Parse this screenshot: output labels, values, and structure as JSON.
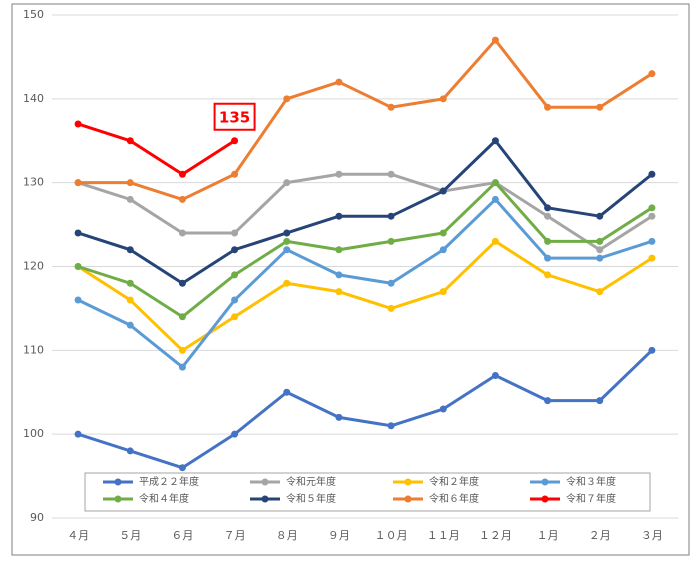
{
  "chart_data": {
    "type": "line",
    "categories": [
      "４月",
      "５月",
      "６月",
      "７月",
      "８月",
      "９月",
      "１０月",
      "１１月",
      "１２月",
      "１月",
      "２月",
      "３月"
    ],
    "series": [
      {
        "name": "平成２２年度",
        "color": "#4472c4",
        "values": [
          100,
          98,
          96,
          100,
          105,
          102,
          101,
          103,
          107,
          104,
          104,
          110
        ]
      },
      {
        "name": "令和元年度",
        "color": "#a5a5a5",
        "values": [
          130,
          128,
          124,
          124,
          130,
          131,
          131,
          129,
          130,
          126,
          122,
          126
        ]
      },
      {
        "name": "令和２年度",
        "color": "#ffc000",
        "values": [
          120,
          116,
          110,
          114,
          118,
          117,
          115,
          117,
          123,
          119,
          117,
          121
        ]
      },
      {
        "name": "令和３年度",
        "color": "#5b9bd5",
        "values": [
          116,
          113,
          108,
          116,
          122,
          119,
          118,
          122,
          128,
          121,
          121,
          123
        ]
      },
      {
        "name": "令和４年度",
        "color": "#70ad47",
        "values": [
          120,
          118,
          114,
          119,
          123,
          122,
          123,
          124,
          130,
          123,
          123,
          127
        ]
      },
      {
        "name": "令和５年度",
        "color": "#264478",
        "values": [
          124,
          122,
          118,
          122,
          124,
          126,
          126,
          129,
          135,
          127,
          126,
          131
        ]
      },
      {
        "name": "令和６年度",
        "color": "#ed7d31",
        "values": [
          130,
          130,
          128,
          131,
          140,
          142,
          139,
          140,
          147,
          139,
          139,
          143
        ]
      },
      {
        "name": "令和７年度",
        "color": "#ff0000",
        "values": [
          137,
          135,
          131,
          135,
          null,
          null,
          null,
          null,
          null,
          null,
          null,
          null
        ]
      }
    ],
    "ylim": [
      90,
      150
    ],
    "yticks": [
      90,
      100,
      110,
      120,
      130,
      140,
      150
    ],
    "grid": true
  }
}
